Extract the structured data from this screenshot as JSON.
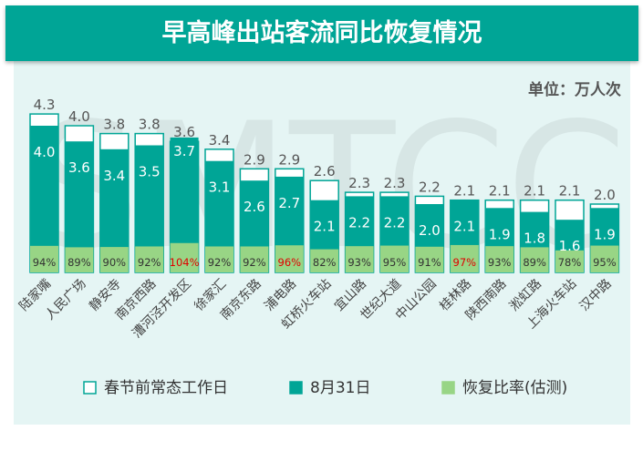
{
  "chart_data": {
    "type": "bar",
    "title": "早高峰出站客流同比恢复情况",
    "unit": "单位：万人次",
    "categories": [
      "陆家嘴",
      "人民广场",
      "静安寺",
      "南京西路",
      "漕河泾开发区",
      "徐家汇",
      "南京东路",
      "浦电路",
      "虹桥火车站",
      "宜山路",
      "世纪大道",
      "中山公园",
      "桂林路",
      "陕西南路",
      "淞虹路",
      "上海火车站",
      "汉中路"
    ],
    "series": [
      {
        "name": "春节前常态工作日",
        "values": [
          4.3,
          4.0,
          3.8,
          3.8,
          3.6,
          3.4,
          2.9,
          2.9,
          2.6,
          2.3,
          2.3,
          2.2,
          2.1,
          2.1,
          2.1,
          2.1,
          2.0
        ],
        "color": "#ffffff"
      },
      {
        "name": "8月31日",
        "values": [
          4.0,
          3.6,
          3.4,
          3.5,
          3.7,
          3.1,
          2.6,
          2.7,
          2.1,
          2.2,
          2.2,
          2.0,
          2.1,
          1.9,
          1.8,
          1.6,
          1.9
        ],
        "color": "#00a596"
      },
      {
        "name": "恢复比率(估测)",
        "values": [
          "94%",
          "89%",
          "90%",
          "92%",
          "104%",
          "92%",
          "92%",
          "96%",
          "82%",
          "93%",
          "95%",
          "91%",
          "97%",
          "93%",
          "89%",
          "78%",
          "95%"
        ],
        "color": "#98d585"
      }
    ],
    "highlight_color": "#e00000",
    "highlighted": [
      "104%",
      "96%",
      "97%"
    ],
    "watermark": "SMTCC"
  }
}
